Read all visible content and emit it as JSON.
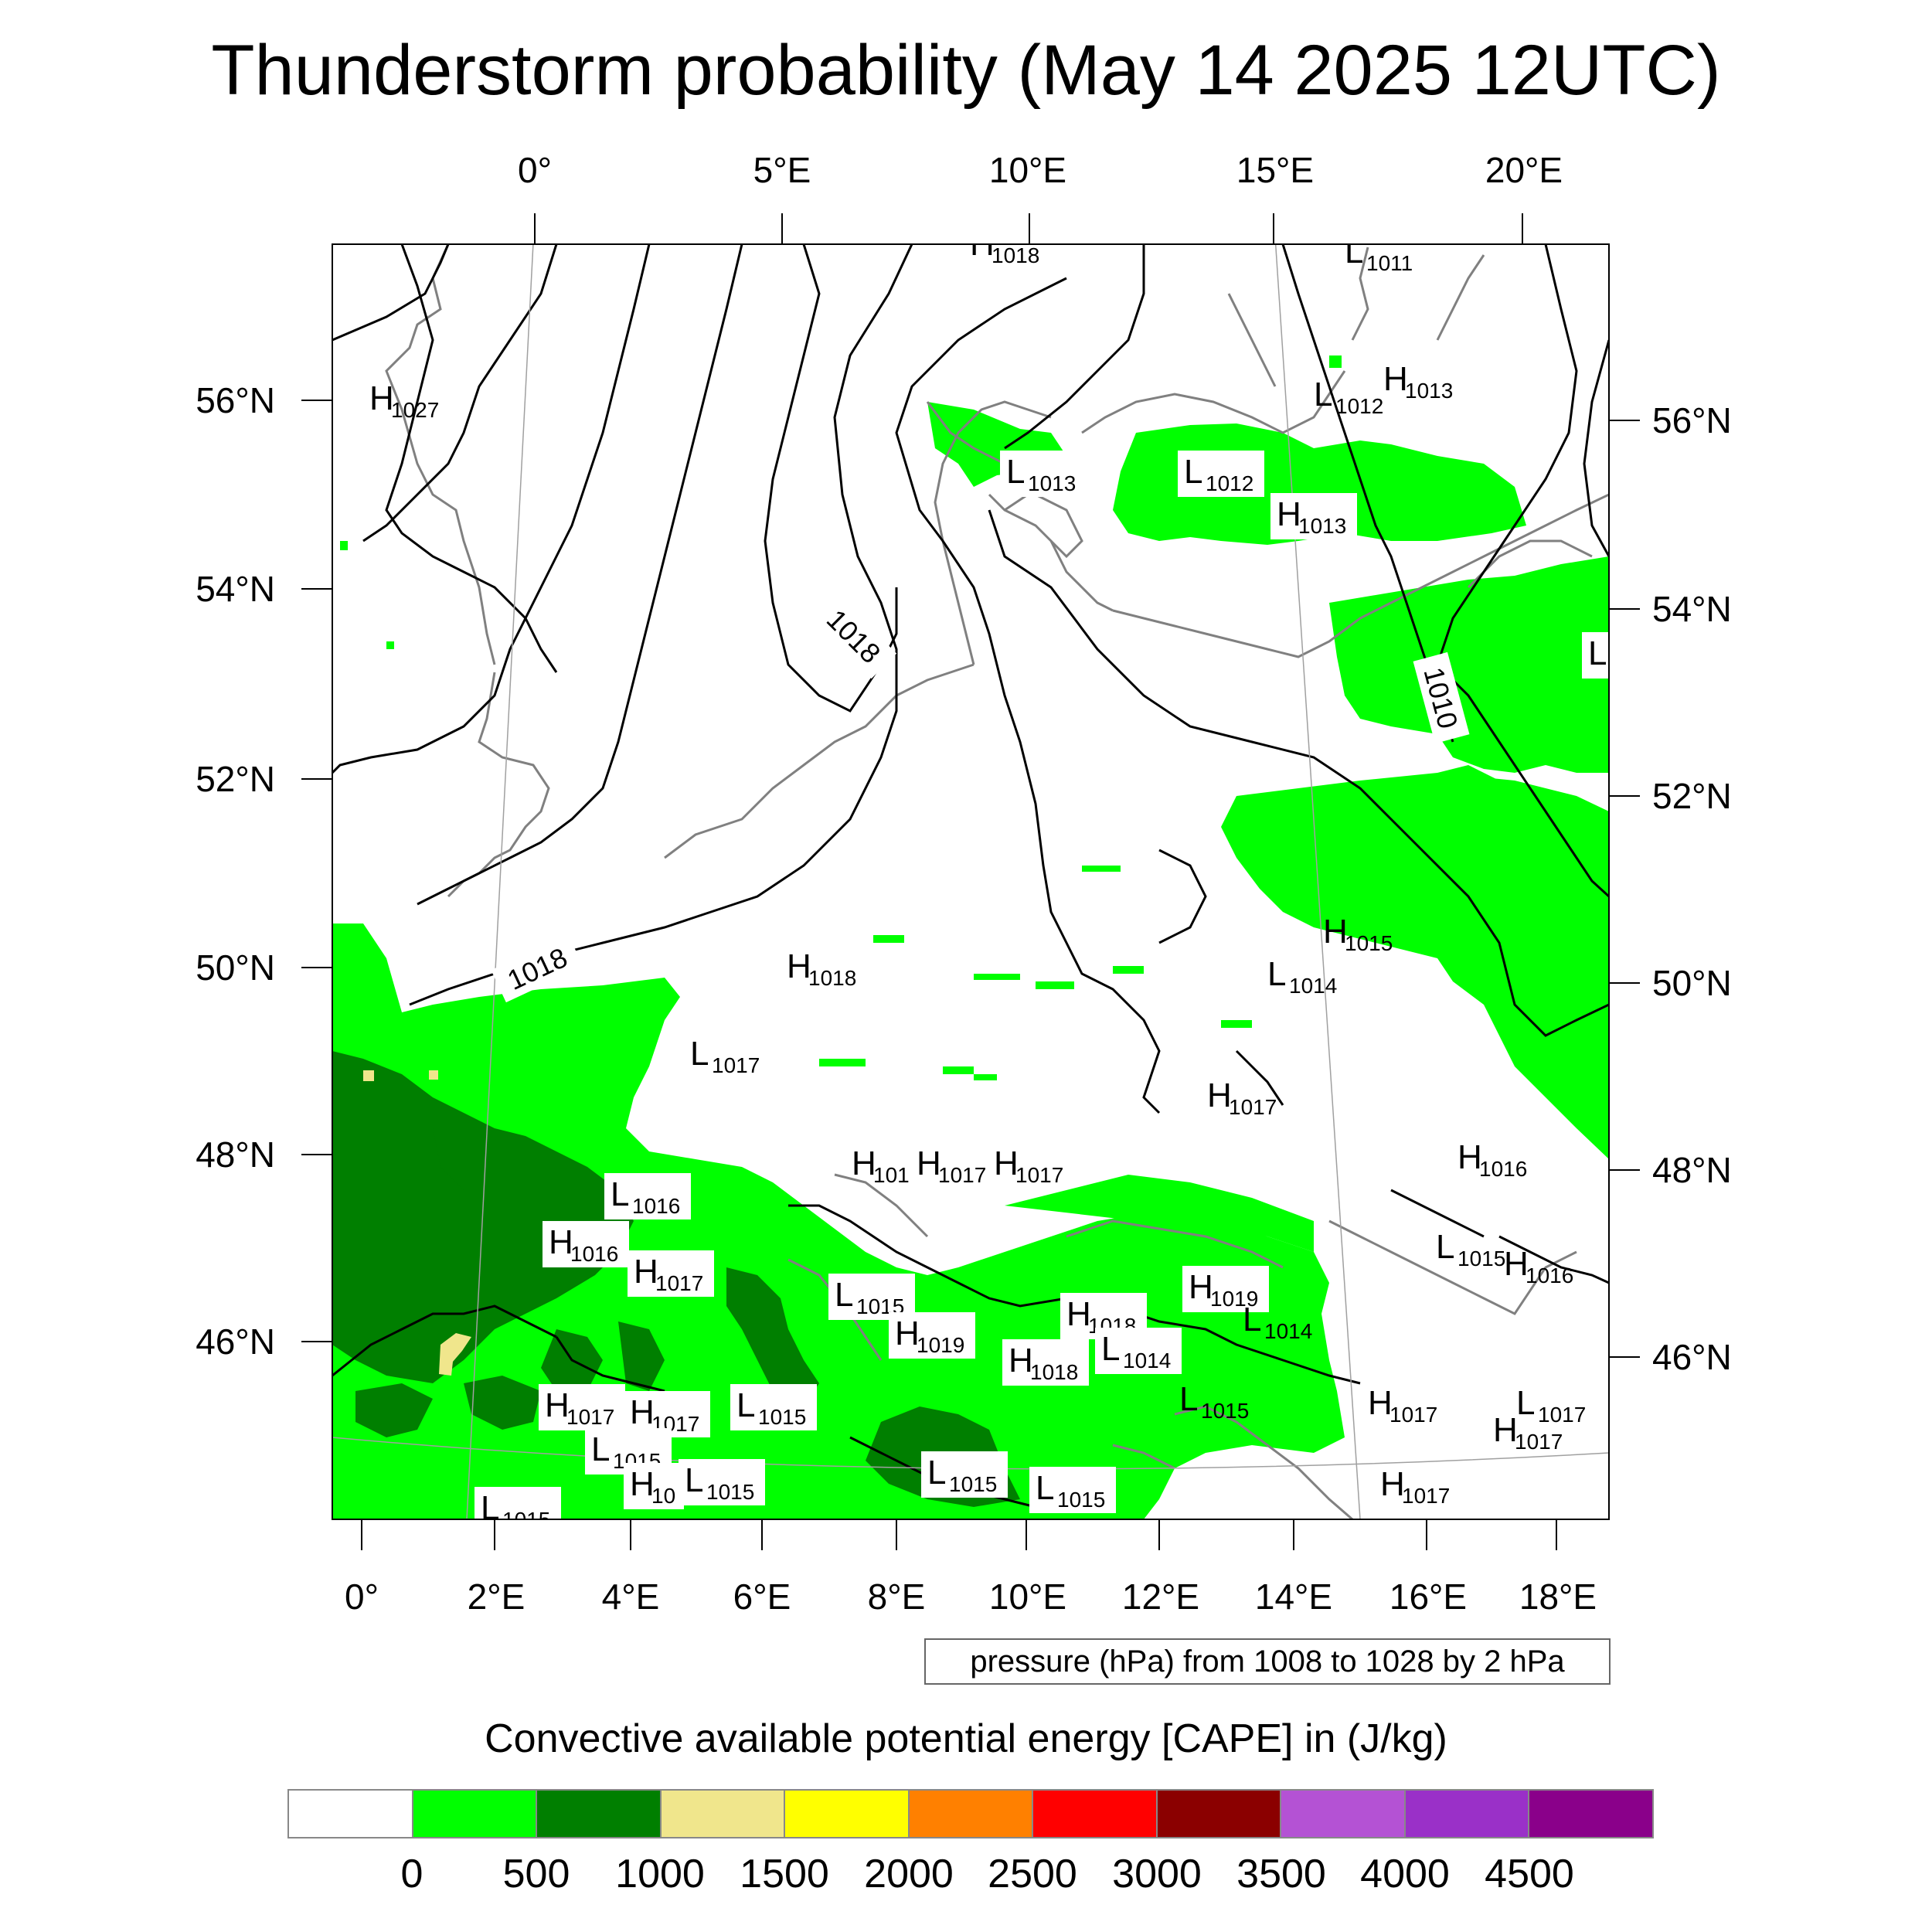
{
  "title": "Thunderstorm probability (May 14 2025 12UTC)",
  "top_axis": {
    "ticks": [
      "0°",
      "5°E",
      "10°E",
      "15°E",
      "20°E"
    ]
  },
  "bottom_axis": {
    "ticks": [
      "0°",
      "2°E",
      "4°E",
      "6°E",
      "8°E",
      "10°E",
      "12°E",
      "14°E",
      "16°E",
      "18°E"
    ]
  },
  "left_axis": {
    "ticks": [
      "56°N",
      "54°N",
      "52°N",
      "50°N",
      "48°N",
      "46°N"
    ]
  },
  "right_axis": {
    "ticks": [
      "56°N",
      "54°N",
      "52°N",
      "50°N",
      "48°N",
      "46°N"
    ]
  },
  "pressure_note": "pressure (hPa) from 1008 to 1028 by 2 hPa",
  "isobar_labels": [
    "1018",
    "1018",
    "1010"
  ],
  "pressure_centers": [
    {
      "type": "H",
      "value": "1018"
    },
    {
      "type": "L",
      "value": "1011"
    },
    {
      "type": "H",
      "value": "1027"
    },
    {
      "type": "H",
      "value": "1013"
    },
    {
      "type": "L",
      "value": "1012"
    },
    {
      "type": "L",
      "value": "1013"
    },
    {
      "type": "L",
      "value": "1012"
    },
    {
      "type": "H",
      "value": "1013"
    },
    {
      "type": "L",
      "value": ""
    },
    {
      "type": "H",
      "value": "1015"
    },
    {
      "type": "H",
      "value": "1018"
    },
    {
      "type": "L",
      "value": "1014"
    },
    {
      "type": "L",
      "value": "1017"
    },
    {
      "type": "H",
      "value": "1017"
    },
    {
      "type": "H",
      "value": "101"
    },
    {
      "type": "H",
      "value": "1017"
    },
    {
      "type": "H",
      "value": "1017"
    },
    {
      "type": "H",
      "value": "1016"
    },
    {
      "type": "L",
      "value": "1016"
    },
    {
      "type": "H",
      "value": "1016"
    },
    {
      "type": "H",
      "value": "1017"
    },
    {
      "type": "L",
      "value": "1015"
    },
    {
      "type": "H",
      "value": "1016"
    },
    {
      "type": "L",
      "value": "1015"
    },
    {
      "type": "H",
      "value": "1018"
    },
    {
      "type": "H",
      "value": "1019"
    },
    {
      "type": "L",
      "value": "1014"
    },
    {
      "type": "H",
      "value": "1019"
    },
    {
      "type": "H",
      "value": "1018"
    },
    {
      "type": "L",
      "value": "1014"
    },
    {
      "type": "H",
      "value": "1017"
    },
    {
      "type": "H",
      "value": "1017"
    },
    {
      "type": "L",
      "value": "1015"
    },
    {
      "type": "L",
      "value": "1015"
    },
    {
      "type": "H",
      "value": "1017"
    },
    {
      "type": "L",
      "value": "1017"
    },
    {
      "type": "H",
      "value": "1017"
    },
    {
      "type": "L",
      "value": "1015"
    },
    {
      "type": "H",
      "value": "10"
    },
    {
      "type": "L",
      "value": "1015"
    },
    {
      "type": "L",
      "value": "1015"
    },
    {
      "type": "L",
      "value": "1015"
    },
    {
      "type": "H",
      "value": "1017"
    },
    {
      "type": "L",
      "value": "1015"
    }
  ],
  "legend": {
    "title": "Convective available potential energy [CAPE] in (J/kg)",
    "colors": [
      "#ffffff",
      "#00ff00",
      "#007f00",
      "#f0e68c",
      "#ffff00",
      "#ff8000",
      "#ff0000",
      "#8b0000",
      "#b452d4",
      "#9a30c8",
      "#8a008a"
    ],
    "labels": [
      "0",
      "500",
      "1000",
      "1500",
      "2000",
      "2500",
      "3000",
      "3500",
      "4000",
      "4500"
    ]
  },
  "colors": {
    "cape_0_500": "#00ff00",
    "cape_500_1000": "#007f00",
    "cape_1000_1500": "#f0e68c",
    "coastline": "#808080",
    "isobar": "#000000"
  }
}
